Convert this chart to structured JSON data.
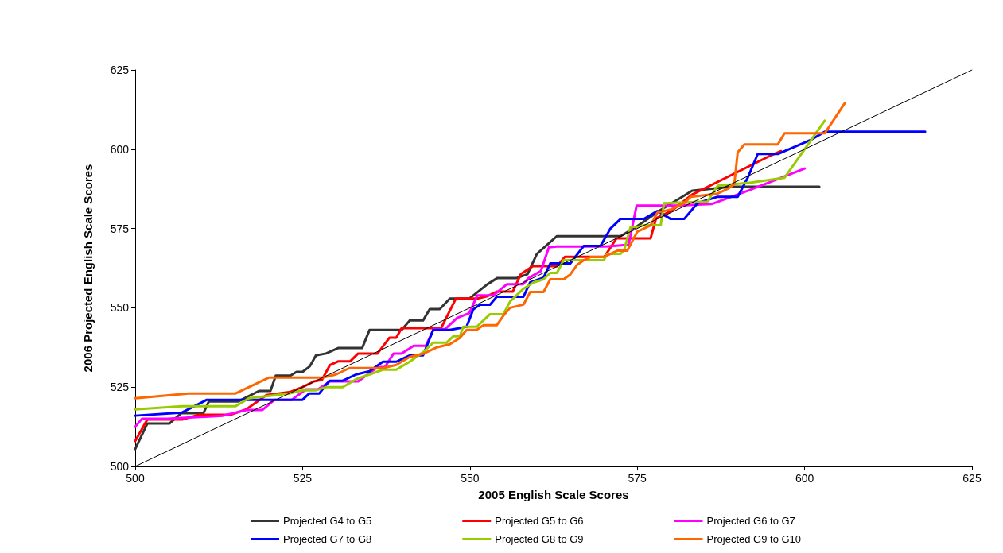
{
  "chart_data": {
    "type": "line",
    "xlabel": "2005 English Scale Scores",
    "ylabel": "2006 Projected English Scale Scores",
    "xlim": [
      500,
      625
    ],
    "xticks": [
      500,
      525,
      550,
      575,
      600,
      625
    ],
    "ylim": [
      500,
      625
    ],
    "yticks": [
      500,
      525,
      550,
      575,
      600,
      625
    ],
    "grid": false,
    "legend": "bottom",
    "marker": "none",
    "line_style": "solid",
    "series": [
      {
        "name": "Projected G4 to G5",
        "color": "#333333",
        "x": [
          500,
          501.8,
          505.1,
          506.9,
          510.2,
          511,
          515.4,
          518.5,
          520.2,
          521,
          523.2,
          524.1,
          525,
          526.1,
          527,
          528.5,
          530.3,
          533.9,
          535,
          539.8,
          541,
          543,
          544,
          545.5,
          547,
          549.9,
          552.6,
          554.1,
          557,
          558.6,
          560,
          563,
          572.5,
          574.9,
          578.4,
          583.2,
          589.1,
          602.2
        ],
        "values": [
          505.5,
          513.5,
          513.5,
          516.8,
          516.8,
          520.5,
          520.5,
          523.8,
          523.8,
          528.6,
          528.6,
          529.8,
          529.8,
          531.6,
          535,
          535.6,
          537.3,
          537.3,
          543,
          543,
          546,
          546,
          549.6,
          549.6,
          552.9,
          552.9,
          557.4,
          559.4,
          559.4,
          560.6,
          567,
          572.6,
          572.6,
          575.6,
          580.7,
          586.9,
          588.2,
          588.2
        ]
      },
      {
        "name": "Projected G5 to G6",
        "color": "#ff0000",
        "x": [
          500,
          501.8,
          507.1,
          509.5,
          514.3,
          516.6,
          519.6,
          523.2,
          525,
          526.7,
          527.9,
          529.1,
          530.3,
          532.1,
          533.3,
          536.2,
          538,
          539,
          539.8,
          545.7,
          547.9,
          551.1,
          552.5,
          554,
          556.4,
          557.6,
          559.4,
          563,
          564.2,
          570.1,
          571.9,
          577,
          577.8,
          580.2,
          583.2,
          595.1,
          596.5
        ],
        "values": [
          508,
          514.8,
          514.8,
          516.3,
          516.3,
          518,
          522.5,
          523.5,
          525,
          526.8,
          527.3,
          532,
          533.1,
          533.1,
          535.6,
          535.6,
          540.6,
          540.6,
          543.6,
          543.6,
          552.9,
          552.9,
          553.6,
          555.1,
          555.1,
          560.6,
          563.1,
          563.1,
          566.1,
          566.1,
          571.9,
          571.9,
          578.2,
          580.7,
          585.7,
          598.2,
          599.4
        ]
      },
      {
        "name": "Projected G6 to G7",
        "color": "#ff00ff",
        "x": [
          500,
          501,
          504.8,
          513.1,
          516.6,
          519,
          520.8,
          523.4,
          525.5,
          527.3,
          529.1,
          533.3,
          536.2,
          537.3,
          538.6,
          539.8,
          541.6,
          543.4,
          544.6,
          546.3,
          548.1,
          549.9,
          551.1,
          553.5,
          555.5,
          557.9,
          558.8,
          560.6,
          561.8,
          563,
          570.1,
          573.7,
          574.9,
          580.8,
          586.1,
          591.5,
          600
        ],
        "values": [
          512.5,
          515,
          515,
          516,
          517.8,
          517.8,
          521,
          521,
          524.3,
          524.3,
          526.8,
          526.8,
          531.3,
          531.3,
          535.6,
          535.6,
          538,
          538,
          543.3,
          543.3,
          546.8,
          548.3,
          553.9,
          553.9,
          557.4,
          557.4,
          559.4,
          561.6,
          569.1,
          569.3,
          569.3,
          569.9,
          582.2,
          582.2,
          582.7,
          586.9,
          593.9
        ]
      },
      {
        "name": "Projected G7 to G8",
        "color": "#0000ff",
        "x": [
          500,
          507,
          510.7,
          516,
          525,
          526,
          527.5,
          529,
          531,
          533,
          535,
          537,
          539,
          541,
          543,
          544.5,
          547,
          549.5,
          550.5,
          551.5,
          553,
          554,
          558,
          559,
          561,
          562,
          565,
          567,
          569.5,
          571,
          572.5,
          576,
          578,
          580,
          582,
          584,
          587,
          590,
          591.5,
          593,
          596,
          601,
          603,
          618
        ],
        "values": [
          516,
          517,
          521,
          521,
          521,
          523,
          523,
          527,
          527,
          529,
          530,
          533,
          533,
          535,
          535,
          543,
          543,
          544,
          549.5,
          551,
          551,
          553.5,
          553.5,
          558,
          559.5,
          564,
          564,
          569.5,
          569.5,
          575,
          578,
          578,
          580.5,
          578,
          578,
          583,
          585,
          585,
          591,
          598.5,
          598.5,
          603,
          605.5,
          605.5
        ]
      },
      {
        "name": "Projected G8 to G9",
        "color": "#99cc00",
        "x": [
          500,
          507,
          515,
          517,
          523,
          525,
          527,
          528.5,
          531,
          533,
          535,
          537,
          539,
          541,
          543,
          544.5,
          546.5,
          547.5,
          548.5,
          549,
          551,
          552,
          553,
          555,
          556,
          557,
          558,
          559.5,
          561,
          562,
          563,
          564,
          570,
          570.5,
          572.5,
          573,
          574,
          575,
          576,
          578.5,
          579,
          585.5,
          587,
          592,
          597,
          600,
          603
        ],
        "values": [
          518,
          519,
          519,
          521.5,
          523,
          524,
          524,
          525,
          525,
          527.5,
          529,
          530.5,
          530.5,
          533,
          536,
          539,
          539,
          541,
          541,
          544,
          544,
          546,
          548,
          548,
          552,
          554,
          556,
          558,
          559,
          561,
          561,
          565,
          565,
          567,
          567,
          568,
          575.5,
          575.5,
          576,
          576,
          583,
          583.5,
          588.5,
          589.5,
          591,
          600,
          609
        ]
      },
      {
        "name": "Projected G9 to G10",
        "color": "#ff6600",
        "x": [
          500,
          508,
          515,
          520,
          528,
          530,
          532,
          537,
          539,
          541,
          543,
          545,
          547,
          548.5,
          549.5,
          551,
          552,
          554,
          555,
          556,
          558,
          559,
          561,
          562,
          564,
          565,
          566,
          567,
          568,
          570,
          572,
          573.5,
          575,
          577,
          578,
          580,
          582,
          583,
          585,
          587,
          588.5,
          589.5,
          590,
          591,
          596,
          597,
          603,
          606
        ],
        "values": [
          521.5,
          523,
          523,
          528,
          528,
          529,
          531,
          531,
          532,
          534.5,
          535.5,
          537.5,
          538.5,
          540.5,
          543,
          543,
          544.5,
          544.5,
          547.5,
          550,
          551,
          555,
          555,
          559,
          559,
          560.5,
          563.5,
          565,
          566,
          566,
          568,
          568,
          574,
          576,
          580,
          581,
          583,
          585,
          585.5,
          586,
          587.5,
          589,
          599,
          601.5,
          601.5,
          605,
          605,
          614.5
        ]
      },
      {
        "color": "#000000",
        "x": [
          500,
          625
        ],
        "values": [
          500,
          625
        ]
      }
    ]
  }
}
